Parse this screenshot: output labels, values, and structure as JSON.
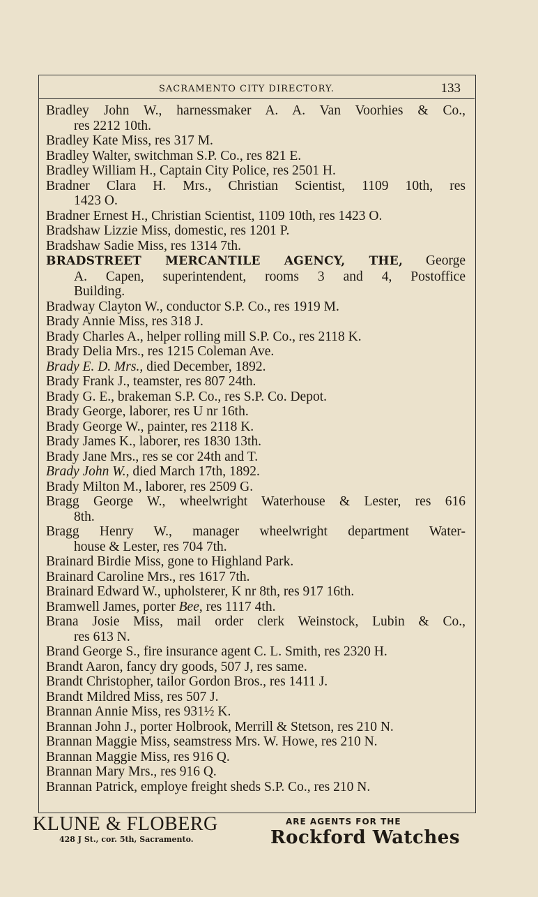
{
  "header": {
    "title": "SACRAMENTO CITY DIRECTORY.",
    "page_number": "133"
  },
  "entries": [
    [
      [
        {
          "t": "Bradley John W., harnessmaker A. A. Van Voorhies & Co.,"
        }
      ],
      [
        {
          "t": "res 2212 10th."
        }
      ]
    ],
    [
      [
        {
          "t": "Bradley Kate Miss, res 317 M."
        }
      ]
    ],
    [
      [
        {
          "t": "Bradley Walter, switchman S.P. Co., res 821 E."
        }
      ]
    ],
    [
      [
        {
          "t": "Bradley William H., Captain City Police, res 2501 H."
        }
      ]
    ],
    [
      [
        {
          "t": "Bradner Clara H. Mrs., Christian Scientist, 1109 10th, res"
        }
      ],
      [
        {
          "t": "1423 O."
        }
      ]
    ],
    [
      [
        {
          "t": "Bradner Ernest H., Christian Scientist, 1109 10th, res 1423 O."
        }
      ]
    ],
    [
      [
        {
          "t": "Bradshaw Lizzie Miss, domestic, res 1201 P."
        }
      ]
    ],
    [
      [
        {
          "t": "Bradshaw Sadie Miss, res 1314 7th."
        }
      ]
    ],
    [
      [
        {
          "t": "BRADSTREET MERCANTILE AGENCY, THE,",
          "s": "b"
        },
        {
          "t": " George"
        }
      ],
      [
        {
          "t": "A. Capen, superintendent, rooms 3 and 4, Postoffice"
        }
      ],
      [
        {
          "t": "Building."
        }
      ]
    ],
    [
      [
        {
          "t": "Bradway Clayton W., conductor S.P. Co., res 1919 M."
        }
      ]
    ],
    [
      [
        {
          "t": "Brady Annie Miss, res 318 J."
        }
      ]
    ],
    [
      [
        {
          "t": "Brady Charles A., helper rolling mill S.P. Co., res 2118 K."
        }
      ]
    ],
    [
      [
        {
          "t": "Brady Delia Mrs., res 1215 Coleman Ave."
        }
      ]
    ],
    [
      [
        {
          "t": "Brady E. D. Mrs.,",
          "s": "i"
        },
        {
          "t": " died December, 1892."
        }
      ]
    ],
    [
      [
        {
          "t": "Brady Frank J., teamster, res 807 24th."
        }
      ]
    ],
    [
      [
        {
          "t": "Brady G. E., brakeman S.P. Co., res S.P. Co. Depot."
        }
      ]
    ],
    [
      [
        {
          "t": "Brady George, laborer, res U nr 16th."
        }
      ]
    ],
    [
      [
        {
          "t": "Brady George W., painter, res 2118 K."
        }
      ]
    ],
    [
      [
        {
          "t": "Brady James K., laborer, res 1830 13th."
        }
      ]
    ],
    [
      [
        {
          "t": "Brady Jane Mrs., res se cor 24th and T."
        }
      ]
    ],
    [
      [
        {
          "t": "Brady John W.,",
          "s": "i"
        },
        {
          "t": " died March 17th, 1892."
        }
      ]
    ],
    [
      [
        {
          "t": "Brady Milton M., laborer, res 2509 G."
        }
      ]
    ],
    [
      [
        {
          "t": "Bragg George W., wheelwright Waterhouse & Lester, res 616"
        }
      ],
      [
        {
          "t": "8th."
        }
      ]
    ],
    [
      [
        {
          "t": "Bragg Henry W., manager wheelwright department Water-"
        }
      ],
      [
        {
          "t": "house & Lester, res 704 7th."
        }
      ]
    ],
    [
      [
        {
          "t": "Brainard Birdie Miss, gone to Highland Park."
        }
      ]
    ],
    [
      [
        {
          "t": "Brainard Caroline Mrs., res 1617 7th."
        }
      ]
    ],
    [
      [
        {
          "t": "Brainard Edward W., upholsterer, K nr 8th, res 917 16th."
        }
      ]
    ],
    [
      [
        {
          "t": "Bramwell James, porter "
        },
        {
          "t": "Bee",
          "s": "i"
        },
        {
          "t": ", res 1117 4th."
        }
      ]
    ],
    [
      [
        {
          "t": "Brana Josie Miss, mail order clerk Weinstock, Lubin & Co.,"
        }
      ],
      [
        {
          "t": "res 613 N."
        }
      ]
    ],
    [
      [
        {
          "t": "Brand George S., fire insurance agent C. L. Smith, res 2320 H."
        }
      ]
    ],
    [
      [
        {
          "t": "Brandt Aaron, fancy dry goods, 507 J, res same."
        }
      ]
    ],
    [
      [
        {
          "t": "Brandt Christopher, tailor Gordon Bros., res 1411 J."
        }
      ]
    ],
    [
      [
        {
          "t": "Brandt Mildred Miss, res 507 J."
        }
      ]
    ],
    [
      [
        {
          "t": "Brannan Annie Miss, res 931½ K."
        }
      ]
    ],
    [
      [
        {
          "t": "Brannan John J., porter Holbrook, Merrill & Stetson, res 210 N."
        }
      ]
    ],
    [
      [
        {
          "t": "Brannan Maggie Miss, seamstress Mrs. W. Howe, res 210 N."
        }
      ]
    ],
    [
      [
        {
          "t": "Brannan Maggie Miss, res 916 Q."
        }
      ]
    ],
    [
      [
        {
          "t": "Brannan Mary Mrs., res 916 Q."
        }
      ]
    ],
    [
      [
        {
          "t": "Brannan Patrick, employe freight sheds S.P. Co., res 210 N."
        }
      ]
    ]
  ],
  "footer": {
    "firm": "KLUNE & FLOBERG",
    "address": "428 J St., cor. 5th, Sacramento.",
    "agents": "ARE AGENTS FOR THE",
    "product": "Rockford Watches"
  }
}
